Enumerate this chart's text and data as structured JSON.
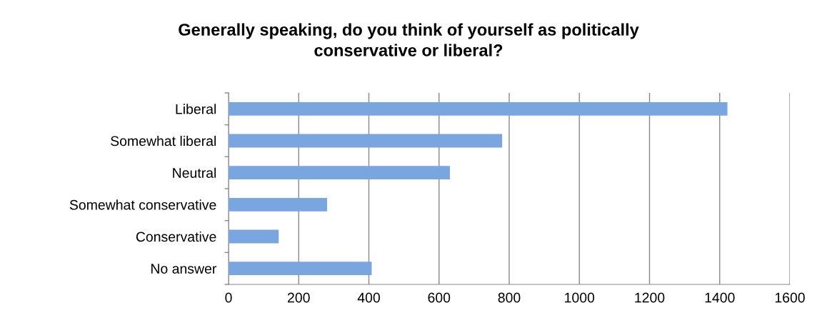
{
  "chart_data": {
    "type": "bar",
    "orientation": "horizontal",
    "title": "Generally speaking, do you think of yourself as politically\nconservative or liberal?",
    "categories": [
      "Liberal",
      "Somewhat liberal",
      "Neutral",
      "Somewhat conservative",
      "Conservative",
      "No answer"
    ],
    "values": [
      1422,
      780,
      631,
      281,
      143,
      408
    ],
    "color": "#7aa6e0",
    "xlim": [
      0,
      1600
    ],
    "xticks": [
      0,
      200,
      400,
      600,
      800,
      1000,
      1200,
      1400,
      1600
    ],
    "grid": "x",
    "legend": false
  }
}
